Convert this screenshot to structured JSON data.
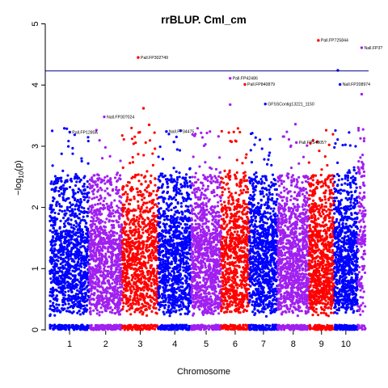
{
  "chart_data": {
    "type": "scatter",
    "subtype": "manhattan",
    "title": "rrBLUP. Cml_cm",
    "xlabel": "Chromosome",
    "ylabel_prefix": "−log",
    "ylabel_sub": "10",
    "ylabel_suffix": "(p)",
    "ylim": [
      0,
      5
    ],
    "yticks": [
      0,
      1,
      2,
      3,
      4,
      5
    ],
    "threshold": 4.23,
    "threshold_color": "#00008B",
    "grid": false,
    "legend": "none",
    "chromosomes": [
      {
        "label": "1",
        "start": 0.0,
        "end": 1.25,
        "color": "#0000FF",
        "bands": [
          [
            0.0,
            1.4
          ],
          [
            1.4,
            1.1
          ],
          [
            1.6,
            0.9
          ],
          [
            2.0,
            0.7
          ],
          [
            2.5,
            0.45
          ]
        ]
      },
      {
        "label": "2",
        "start": 1.25,
        "end": 2.3,
        "color": "#A020F0",
        "bands": [
          [
            0.0,
            1.3
          ],
          [
            1.4,
            1.05
          ],
          [
            1.6,
            0.85
          ],
          [
            2.0,
            0.65
          ],
          [
            2.5,
            0.4
          ]
        ]
      },
      {
        "label": "3",
        "start": 2.3,
        "end": 3.45,
        "color": "#FF0000",
        "bands": [
          [
            0.0,
            1.5
          ],
          [
            1.4,
            1.2
          ],
          [
            1.6,
            1.0
          ],
          [
            2.0,
            0.75
          ],
          [
            2.5,
            0.5
          ]
        ]
      },
      {
        "label": "4",
        "start": 3.45,
        "end": 4.5,
        "color": "#0000FF",
        "bands": [
          [
            0.0,
            1.3
          ],
          [
            1.4,
            1.05
          ],
          [
            1.6,
            0.85
          ],
          [
            2.0,
            0.6
          ],
          [
            2.5,
            0.4
          ]
        ]
      },
      {
        "label": "5",
        "start": 4.5,
        "end": 5.45,
        "color": "#A020F0",
        "bands": [
          [
            0.0,
            1.2
          ],
          [
            1.4,
            0.95
          ],
          [
            1.6,
            0.75
          ],
          [
            2.0,
            0.55
          ],
          [
            2.5,
            0.35
          ]
        ]
      },
      {
        "label": "6",
        "start": 5.45,
        "end": 6.35,
        "color": "#FF0000",
        "bands": [
          [
            0.0,
            1.4
          ],
          [
            1.4,
            1.1
          ],
          [
            1.6,
            0.9
          ],
          [
            2.0,
            0.7
          ],
          [
            2.5,
            0.45
          ]
        ]
      },
      {
        "label": "7",
        "start": 6.35,
        "end": 7.25,
        "color": "#0000FF",
        "bands": [
          [
            0.0,
            1.3
          ],
          [
            1.4,
            1.0
          ],
          [
            1.6,
            0.8
          ],
          [
            2.0,
            0.6
          ],
          [
            2.5,
            0.35
          ]
        ]
      },
      {
        "label": "8",
        "start": 7.25,
        "end": 8.25,
        "color": "#A020F0",
        "bands": [
          [
            0.0,
            1.2
          ],
          [
            1.4,
            0.95
          ],
          [
            1.6,
            0.75
          ],
          [
            2.0,
            0.55
          ],
          [
            2.5,
            0.35
          ]
        ]
      },
      {
        "label": "9",
        "start": 8.25,
        "end": 9.05,
        "color": "#FF0000",
        "bands": [
          [
            0.0,
            1.3
          ],
          [
            1.4,
            1.0
          ],
          [
            1.6,
            0.8
          ],
          [
            2.0,
            0.6
          ],
          [
            2.5,
            0.35
          ]
        ]
      },
      {
        "label": "10",
        "start": 9.05,
        "end": 9.8,
        "color": "#0000FF",
        "bands": [
          [
            0.0,
            1.2
          ],
          [
            1.4,
            0.95
          ],
          [
            1.6,
            0.75
          ],
          [
            2.0,
            0.55
          ],
          [
            2.5,
            0.35
          ]
        ]
      },
      {
        "label": "",
        "start": 9.8,
        "end": 10.05,
        "color": "#A020F0",
        "bands": [
          [
            0.0,
            2.8
          ],
          [
            1.4,
            2.4
          ],
          [
            2.0,
            2.0
          ],
          [
            2.5,
            1.6
          ],
          [
            3.0,
            1.2
          ]
        ]
      }
    ],
    "extra_points": [
      {
        "x": 0.63,
        "y": 3.23,
        "color": "#0000FF"
      },
      {
        "x": 1.73,
        "y": 3.48,
        "color": "#A020F0"
      },
      {
        "x": 2.81,
        "y": 4.45,
        "color": "#FF0000"
      },
      {
        "x": 2.98,
        "y": 3.62,
        "color": "#FF0000"
      },
      {
        "x": 3.16,
        "y": 3.35,
        "color": "#FF0000"
      },
      {
        "x": 3.71,
        "y": 3.24,
        "color": "#0000FF"
      },
      {
        "x": 3.95,
        "y": 3.07,
        "color": "#0000FF"
      },
      {
        "x": 5.74,
        "y": 4.11,
        "color": "#A020F0"
      },
      {
        "x": 5.74,
        "y": 3.68,
        "color": "#A020F0"
      },
      {
        "x": 6.21,
        "y": 4.01,
        "color": "#FF0000"
      },
      {
        "x": 6.86,
        "y": 3.69,
        "color": "#0000FF"
      },
      {
        "x": 7.82,
        "y": 3.36,
        "color": "#A020F0"
      },
      {
        "x": 7.85,
        "y": 3.06,
        "color": "#A020F0"
      },
      {
        "x": 8.55,
        "y": 4.73,
        "color": "#FF0000"
      },
      {
        "x": 9.17,
        "y": 4.24,
        "color": "#0000FF"
      },
      {
        "x": 9.24,
        "y": 4.01,
        "color": "#0000FF"
      },
      {
        "x": 9.93,
        "y": 4.61,
        "color": "#A020F0"
      },
      {
        "x": 9.93,
        "y": 3.85,
        "color": "#A020F0"
      }
    ],
    "annotations": [
      {
        "text": "Pall.FP1280A",
        "x": 0.63,
        "y": 3.23
      },
      {
        "text": "Nall.FP30?024",
        "x": 1.73,
        "y": 3.48
      },
      {
        "text": "Pall.FP302?49",
        "x": 2.81,
        "y": 4.45
      },
      {
        "text": "Nall.FP34475",
        "x": 3.71,
        "y": 3.24
      },
      {
        "text": "Pall.FP42486",
        "x": 5.74,
        "y": 4.11
      },
      {
        "text": "Pall.FP840879",
        "x": 6.21,
        "y": 4.01
      },
      {
        "text": "GFSSContig13221_1150",
        "x": 6.86,
        "y": 3.69
      },
      {
        "text": "Pall.FP54805?",
        "x": 7.85,
        "y": 3.06
      },
      {
        "text": "Pall.FP725844",
        "x": 8.55,
        "y": 4.73
      },
      {
        "text": "Nall.FP208974",
        "x": 9.24,
        "y": 4.01
      },
      {
        "text": "Nall.FP3?",
        "x": 9.93,
        "y": 4.61
      }
    ]
  }
}
